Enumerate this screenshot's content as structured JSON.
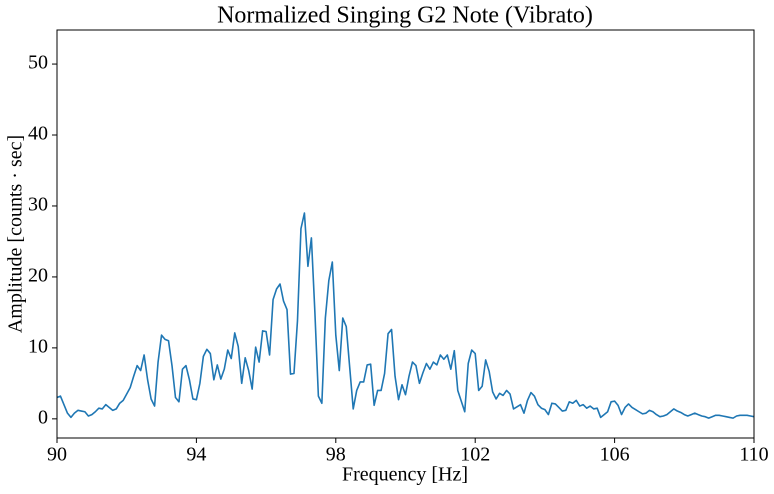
{
  "chart_data": {
    "type": "line",
    "title": "Normalized Singing G2 Note (Vibrato)",
    "x_label": "Frequency [Hz]",
    "y_label": "Amplitude [counts · sec]",
    "x": [
      90,
      90.1,
      90.2,
      90.3,
      90.4,
      90.5,
      90.6,
      90.7,
      90.8,
      90.9,
      91,
      91.1,
      91.2,
      91.3,
      91.4,
      91.5,
      91.6,
      91.7,
      91.8,
      91.9,
      92,
      92.1,
      92.2,
      92.3,
      92.4,
      92.5,
      92.6,
      92.7,
      92.8,
      92.9,
      93,
      93.1,
      93.2,
      93.3,
      93.4,
      93.5,
      93.6,
      93.7,
      93.8,
      93.9,
      94,
      94.1,
      94.2,
      94.3,
      94.4,
      94.5,
      94.6,
      94.7,
      94.8,
      94.9,
      95,
      95.1,
      95.2,
      95.3,
      95.4,
      95.5,
      95.6,
      95.7,
      95.8,
      95.9,
      96,
      96.1,
      96.2,
      96.3,
      96.4,
      96.5,
      96.6,
      96.7,
      96.8,
      96.9,
      97,
      97.1,
      97.2,
      97.3,
      97.4,
      97.5,
      97.6,
      97.7,
      97.8,
      97.9,
      98,
      98.1,
      98.2,
      98.3,
      98.4,
      98.5,
      98.6,
      98.7,
      98.8,
      98.9,
      99,
      99.1,
      99.2,
      99.3,
      99.4,
      99.5,
      99.6,
      99.7,
      99.8,
      99.9,
      100,
      100.1,
      100.2,
      100.3,
      100.4,
      100.5,
      100.6,
      100.7,
      100.8,
      100.9,
      101,
      101.1,
      101.2,
      101.3,
      101.4,
      101.5,
      101.6,
      101.7,
      101.8,
      101.9,
      102,
      102.1,
      102.2,
      102.3,
      102.4,
      102.5,
      102.6,
      102.7,
      102.8,
      102.9,
      103,
      103.1,
      103.2,
      103.3,
      103.4,
      103.5,
      103.6,
      103.7,
      103.8,
      103.9,
      104,
      104.1,
      104.2,
      104.3,
      104.4,
      104.5,
      104.6,
      104.7,
      104.8,
      104.9,
      105,
      105.1,
      105.2,
      105.3,
      105.4,
      105.5,
      105.6,
      105.7,
      105.8,
      105.9,
      106,
      106.1,
      106.2,
      106.3,
      106.4,
      106.5,
      106.6,
      106.7,
      106.8,
      106.9,
      107,
      107.1,
      107.2,
      107.3,
      107.4,
      107.5,
      107.6,
      107.7,
      107.8,
      107.9,
      108,
      108.1,
      108.2,
      108.3,
      108.4,
      108.5,
      108.6,
      108.7,
      108.8,
      108.9,
      109,
      109.1,
      109.2,
      109.3,
      109.4,
      109.5,
      109.6,
      109.7,
      109.8,
      109.9,
      110
    ],
    "series": [
      {
        "color": "#1f77b4",
        "values": [
          3.0,
          3.2,
          2.0,
          0.8,
          0.2,
          0.8,
          1.2,
          1.1,
          1.0,
          0.4,
          0.6,
          1.0,
          1.5,
          1.4,
          2.0,
          1.6,
          1.2,
          1.4,
          2.2,
          2.6,
          3.5,
          4.4,
          6.0,
          7.5,
          6.8,
          9.0,
          5.5,
          2.8,
          1.8,
          8.0,
          11.8,
          11.2,
          11.0,
          7.5,
          3.0,
          2.4,
          7.0,
          7.5,
          5.5,
          2.8,
          2.7,
          5.0,
          8.8,
          9.8,
          9.2,
          5.5,
          7.6,
          5.6,
          7.0,
          9.7,
          8.5,
          12.1,
          10.2,
          5.0,
          8.6,
          6.8,
          4.2,
          10.1,
          8.0,
          12.4,
          12.3,
          9.0,
          16.8,
          18.3,
          19.0,
          16.6,
          15.4,
          6.3,
          6.4,
          13.8,
          26.8,
          29.0,
          21.5,
          25.5,
          15.0,
          3.2,
          2.2,
          14.2,
          19.5,
          22.1,
          11.8,
          6.8,
          14.2,
          13.0,
          7.2,
          1.4,
          4.0,
          5.2,
          5.2,
          7.6,
          7.7,
          1.9,
          4.0,
          4.0,
          6.4,
          12.0,
          12.6,
          6.0,
          2.7,
          4.8,
          3.4,
          6.0,
          8.0,
          7.5,
          5.0,
          6.5,
          7.8,
          7.0,
          8.0,
          7.6,
          9.0,
          8.4,
          9.0,
          7.0,
          9.6,
          4.0,
          2.5,
          1.0,
          7.8,
          9.7,
          9.2,
          4.0,
          4.6,
          8.3,
          6.7,
          3.8,
          2.8,
          3.6,
          3.3,
          4.0,
          3.5,
          1.4,
          1.7,
          2.0,
          0.8,
          2.6,
          3.7,
          3.2,
          2.0,
          1.5,
          1.3,
          0.6,
          2.2,
          2.1,
          1.6,
          1.1,
          1.2,
          2.4,
          2.2,
          2.6,
          1.8,
          2.0,
          1.5,
          1.8,
          1.4,
          1.5,
          0.2,
          0.6,
          1.0,
          2.4,
          2.5,
          1.9,
          0.6,
          1.6,
          2.1,
          1.6,
          1.3,
          1.0,
          0.7,
          0.8,
          1.2,
          1.0,
          0.6,
          0.3,
          0.4,
          0.6,
          1.0,
          1.4,
          1.1,
          0.9,
          0.6,
          0.4,
          0.6,
          0.8,
          0.6,
          0.4,
          0.3,
          0.1,
          0.3,
          0.5,
          0.5,
          0.4,
          0.3,
          0.2,
          0.1,
          0.4,
          0.5,
          0.5,
          0.5,
          0.4,
          0.3
        ]
      }
    ],
    "xlim": [
      90,
      110
    ],
    "xticks": [
      90,
      94,
      98,
      102,
      106,
      110
    ],
    "ylim": [
      -2.7,
      54.8
    ],
    "yticks": [
      0,
      10,
      20,
      30,
      40,
      50
    ],
    "grid": false
  }
}
